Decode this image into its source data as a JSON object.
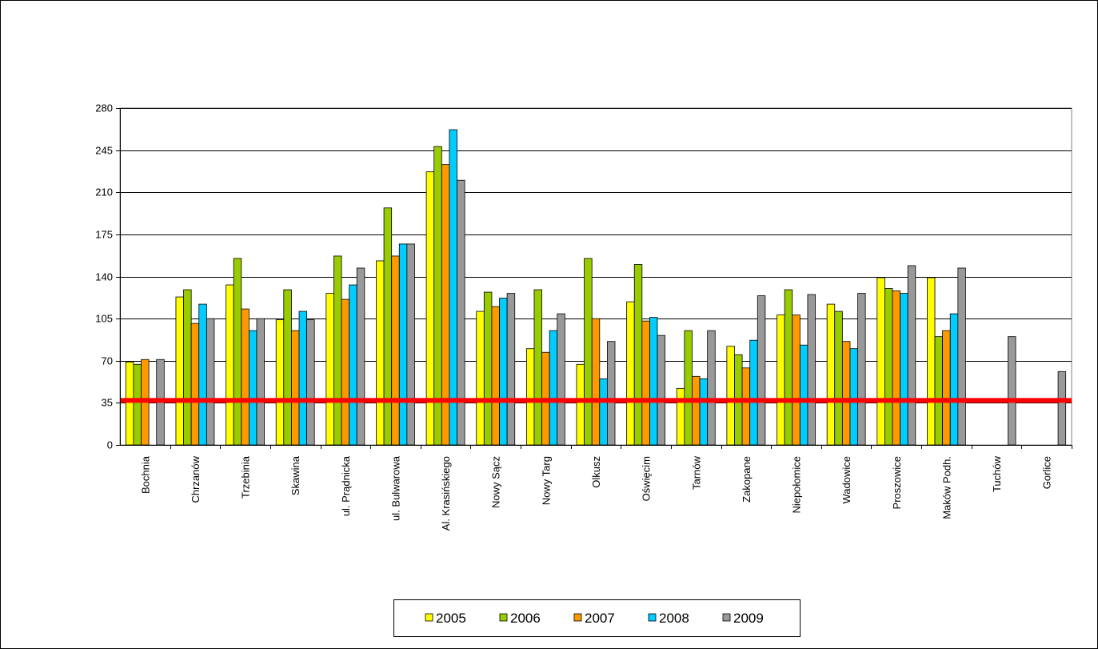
{
  "chart_data": {
    "type": "bar",
    "title": "",
    "xlabel": "",
    "ylabel": "",
    "ylim": [
      0,
      280
    ],
    "yticks": [
      0,
      35,
      70,
      105,
      140,
      175,
      210,
      245,
      280
    ],
    "grid": true,
    "legend_position": "bottom",
    "categories": [
      "Bochnia",
      "Chrzanów",
      "Trzebinia",
      "Skawina",
      "ul. Prądnicka",
      "ul. Bulwarowa",
      "Al. Krasińskiego",
      "Nowy Sącz",
      "Nowy Targ",
      "Olkusz",
      "Oświęcim",
      "Tarnów",
      "Zakopane",
      "Niepołomice",
      "Wadowice",
      "Proszowice",
      "Maków Podh.",
      "Tuchów",
      "Gorlice"
    ],
    "series": [
      {
        "name": "2005",
        "color": "#FFFF00",
        "values": [
          69,
          123,
          133,
          104,
          126,
          153,
          227,
          111,
          80,
          67,
          119,
          47,
          82,
          108,
          117,
          139,
          139,
          null,
          null
        ]
      },
      {
        "name": "2006",
        "color": "#99CC00",
        "values": [
          67,
          129,
          155,
          129,
          157,
          197,
          248,
          127,
          129,
          155,
          150,
          95,
          75,
          129,
          111,
          130,
          90,
          null,
          null
        ]
      },
      {
        "name": "2007",
        "color": "#FF9900",
        "values": [
          71,
          101,
          113,
          95,
          121,
          157,
          233,
          115,
          77,
          105,
          103,
          57,
          64,
          108,
          86,
          128,
          95,
          null,
          null
        ]
      },
      {
        "name": "2008",
        "color": "#00CCFF",
        "values": [
          null,
          117,
          95,
          111,
          133,
          167,
          262,
          122,
          95,
          55,
          106,
          55,
          87,
          83,
          80,
          126,
          109,
          null,
          null
        ]
      },
      {
        "name": "2009",
        "color": "#999999",
        "values": [
          71,
          105,
          105,
          104,
          147,
          167,
          220,
          126,
          109,
          86,
          91,
          95,
          124,
          125,
          126,
          149,
          147,
          90,
          61
        ]
      }
    ],
    "reference_line": {
      "value": 37,
      "color": "#FF0000"
    },
    "colors": {
      "background": "#FFFFFF",
      "plot_border": "#808080",
      "gridline": "#000000"
    }
  }
}
